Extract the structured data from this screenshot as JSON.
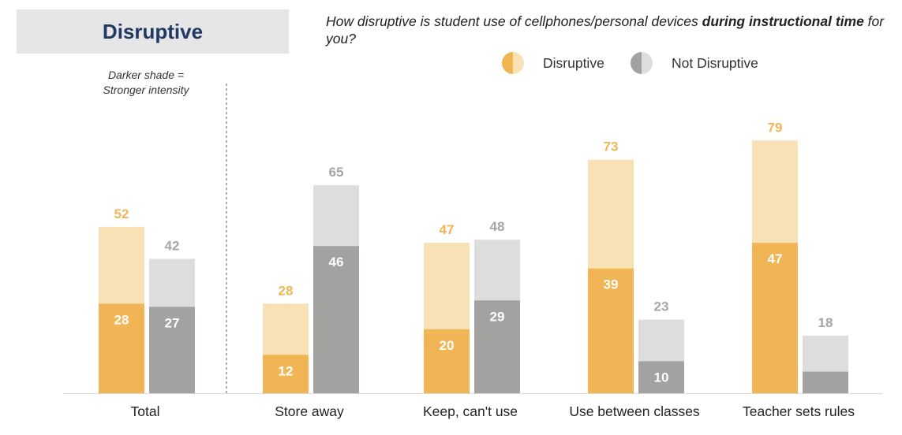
{
  "title": "Disruptive",
  "question": {
    "part1": "How disruptive is student use of cellphones/personal devices ",
    "bold": "during instructional time",
    "part2": " for you?"
  },
  "note": {
    "line1": "Darker shade =",
    "line2": "Stronger intensity"
  },
  "colors": {
    "disruptive_light": "#f8e1b4",
    "disruptive_dark": "#f2b555",
    "disruptive_text": "#f2b555",
    "not_light": "#dddddd",
    "not_dark": "#a4a2a0",
    "not_text": "#a6a6a6"
  },
  "chart_data": {
    "type": "bar",
    "stacked_within_bar": true,
    "categories": [
      "Total",
      "Store away",
      "Keep, can't use",
      "Use between classes",
      "Teacher sets rules"
    ],
    "legend": [
      "Disruptive",
      "Not Disruptive"
    ],
    "legend_position": "top",
    "series": [
      {
        "name": "Disruptive",
        "total": [
          52,
          28,
          47,
          73,
          79
        ],
        "strong": [
          28,
          12,
          20,
          39,
          47
        ]
      },
      {
        "name": "Not Disruptive",
        "total": [
          42,
          65,
          48,
          23,
          18
        ],
        "strong": [
          27,
          46,
          29,
          10,
          null
        ]
      }
    ],
    "ylim": [
      0,
      80
    ],
    "grid": false
  }
}
